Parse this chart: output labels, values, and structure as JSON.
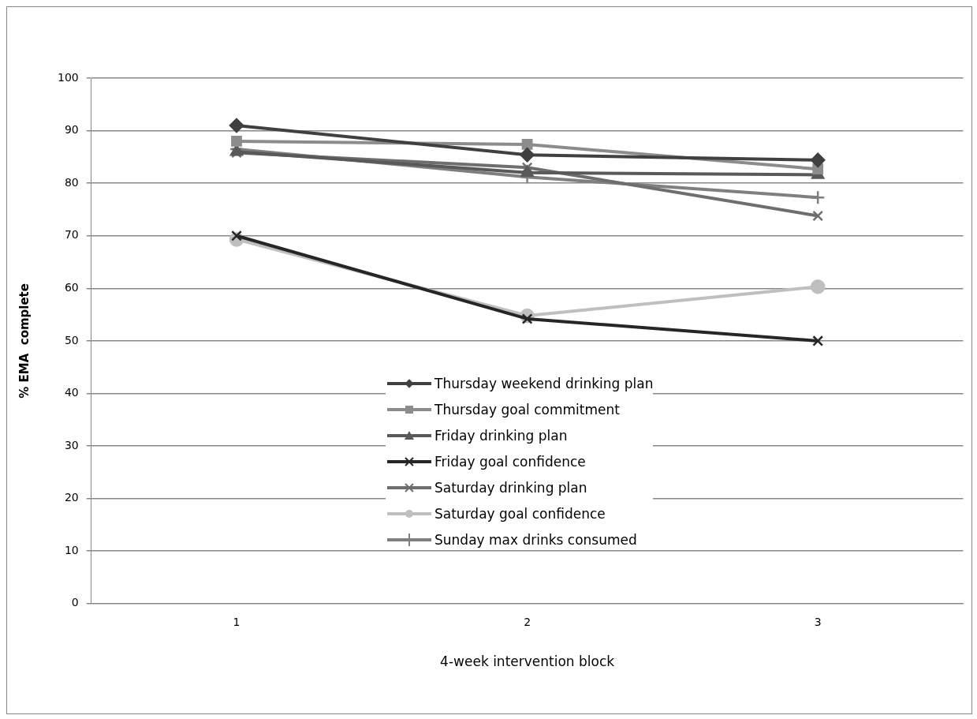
{
  "chart_data": {
    "type": "line",
    "xlabel": "4-week intervention block",
    "ylabel": "% EMA  complete",
    "categories": [
      "1",
      "2",
      "3"
    ],
    "ylim": [
      0,
      100
    ],
    "yticks": [
      0,
      10,
      20,
      30,
      40,
      50,
      60,
      70,
      80,
      90,
      100
    ],
    "grid": "y",
    "legend": "bottom",
    "line_style": "solid",
    "series": [
      {
        "name": "Thursday weekend drinking plan",
        "color": "#404040",
        "marker": "diamond",
        "values": [
          91,
          85.4,
          84.4
        ]
      },
      {
        "name": "Thursday goal commitment",
        "color": "#8c8c8c",
        "marker": "square",
        "values": [
          88,
          87.4,
          82.7
        ]
      },
      {
        "name": "Friday drinking plan",
        "color": "#595959",
        "marker": "triangle",
        "values": [
          86,
          82,
          81.6
        ]
      },
      {
        "name": "Friday goal confidence",
        "color": "#262626",
        "marker": "cross",
        "values": [
          70,
          54.2,
          50
        ]
      },
      {
        "name": "Saturday drinking plan",
        "color": "#6e6e6e",
        "marker": "cross",
        "values": [
          85.8,
          83,
          73.8
        ]
      },
      {
        "name": "Saturday goal confidence",
        "color": "#bfbfbf",
        "marker": "circle",
        "values": [
          69.3,
          54.8,
          60.3
        ]
      },
      {
        "name": "Sunday max drinks consumed",
        "color": "#7f7f7f",
        "marker": "plus",
        "values": [
          86.5,
          81.2,
          77.3
        ]
      }
    ]
  }
}
